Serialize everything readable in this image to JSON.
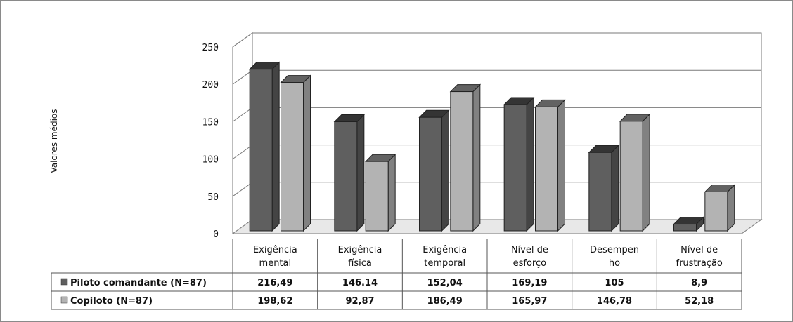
{
  "chart_data": {
    "type": "bar",
    "ylabel": "Valores médios",
    "ylim": [
      0,
      250
    ],
    "yticks": [
      "0",
      "50",
      "100",
      "150",
      "200",
      "250"
    ],
    "grid": true,
    "legend": "data-table",
    "categories": [
      [
        "Exigência",
        "mental"
      ],
      [
        "Exigência",
        "física"
      ],
      [
        "Exigência",
        "temporal"
      ],
      [
        "Nível de",
        "esforço"
      ],
      [
        "Desempen",
        "ho"
      ],
      [
        "Nível de",
        "frustração"
      ]
    ],
    "series": [
      {
        "name": "Piloto comandante (N=87)",
        "color": "#5f5f5f",
        "values": [
          216.49,
          146.14,
          152.04,
          169.19,
          105,
          8.9
        ],
        "labels": [
          "216,49",
          "146.14",
          "152,04",
          "169,19",
          "105",
          "8,9"
        ]
      },
      {
        "name": "Copiloto (N=87)",
        "color": "#b3b3b3",
        "values": [
          198.62,
          92.87,
          186.49,
          165.97,
          146.78,
          52.18
        ],
        "labels": [
          "198,62",
          "92,87",
          "186,49",
          "165,97",
          "146,78",
          "52,18"
        ]
      }
    ]
  }
}
